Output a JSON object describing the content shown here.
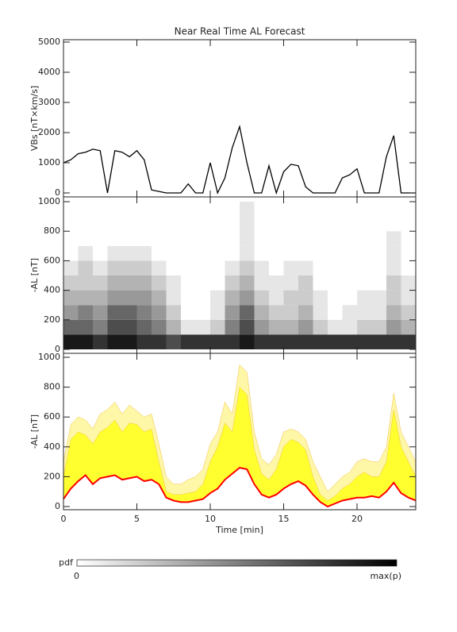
{
  "chart_data": [
    {
      "type": "line",
      "title": "Near Real Time AL Forecast",
      "y_label": "VBs [nT×km/s]",
      "color": "#000000",
      "x": [
        0,
        0.5,
        1,
        1.5,
        2,
        2.5,
        3,
        3.5,
        4,
        4.5,
        5,
        5.5,
        6,
        6.5,
        7,
        7.5,
        8,
        8.5,
        9,
        9.5,
        10,
        10.5,
        11,
        11.5,
        12,
        12.5,
        13,
        13.5,
        14,
        14.5,
        15,
        15.5,
        16,
        16.5,
        17,
        17.5,
        18,
        18.5,
        19,
        19.5,
        20,
        20.5,
        21,
        21.5,
        22,
        22.5,
        23,
        23.5,
        24
      ],
      "values": [
        1000,
        1100,
        1300,
        1350,
        1450,
        1400,
        0,
        1400,
        1350,
        1200,
        1400,
        1100,
        100,
        50,
        0,
        0,
        0,
        300,
        0,
        0,
        1000,
        0,
        500,
        1500,
        2200,
        1000,
        0,
        0,
        900,
        0,
        700,
        950,
        900,
        200,
        0,
        0,
        0,
        0,
        500,
        600,
        800,
        0,
        0,
        0,
        1200,
        1900,
        0,
        0,
        0
      ],
      "xlim": [
        0,
        24
      ],
      "ylim": [
        0,
        5000
      ],
      "yticks": [
        0,
        1000,
        2000,
        3000,
        4000,
        5000
      ]
    },
    {
      "type": "heatmap",
      "y_label": "-AL [nT]",
      "x_bins": [
        0,
        1,
        2,
        3,
        4,
        5,
        6,
        7,
        8,
        9,
        10,
        11,
        12,
        13,
        14,
        15,
        16,
        17,
        18,
        19,
        20,
        21,
        22,
        23,
        24
      ],
      "y_bins": [
        0,
        100,
        200,
        300,
        400,
        500,
        600,
        700,
        800,
        900,
        1000
      ],
      "values": [
        [
          0.9,
          0.9,
          0.8,
          0.9,
          0.9,
          0.8,
          0.8,
          0.7,
          0.8,
          0.8,
          0.8,
          0.8,
          0.9,
          0.8,
          0.8,
          0.8,
          0.8,
          0.8,
          0.8,
          0.8,
          0.8,
          0.8,
          0.8,
          0.8
        ],
        [
          0.6,
          0.6,
          0.5,
          0.7,
          0.7,
          0.6,
          0.5,
          0.3,
          0.1,
          0.1,
          0.2,
          0.5,
          0.7,
          0.4,
          0.3,
          0.3,
          0.4,
          0.2,
          0.1,
          0.1,
          0.2,
          0.2,
          0.4,
          0.3
        ],
        [
          0.4,
          0.5,
          0.4,
          0.6,
          0.6,
          0.5,
          0.4,
          0.2,
          0,
          0,
          0.1,
          0.4,
          0.6,
          0.3,
          0.2,
          0.2,
          0.3,
          0.1,
          0,
          0.1,
          0.1,
          0.1,
          0.3,
          0.2
        ],
        [
          0.3,
          0.3,
          0.3,
          0.4,
          0.4,
          0.4,
          0.3,
          0.1,
          0,
          0,
          0.1,
          0.3,
          0.4,
          0.2,
          0.1,
          0.2,
          0.2,
          0.1,
          0,
          0,
          0.1,
          0.1,
          0.2,
          0.1
        ],
        [
          0.2,
          0.2,
          0.2,
          0.3,
          0.3,
          0.3,
          0.2,
          0.1,
          0,
          0,
          0,
          0.2,
          0.3,
          0.1,
          0.1,
          0.1,
          0.2,
          0,
          0,
          0,
          0,
          0,
          0.2,
          0.1
        ],
        [
          0.1,
          0.2,
          0.1,
          0.2,
          0.2,
          0.2,
          0.1,
          0,
          0,
          0,
          0,
          0.1,
          0.2,
          0.1,
          0,
          0.1,
          0.1,
          0,
          0,
          0,
          0,
          0,
          0.1,
          0
        ],
        [
          0,
          0.1,
          0,
          0.1,
          0.1,
          0.1,
          0,
          0,
          0,
          0,
          0,
          0,
          0.1,
          0,
          0,
          0,
          0,
          0,
          0,
          0,
          0,
          0,
          0.1,
          0
        ],
        [
          0,
          0,
          0,
          0,
          0,
          0,
          0,
          0,
          0,
          0,
          0,
          0,
          0.1,
          0,
          0,
          0,
          0,
          0,
          0,
          0,
          0,
          0,
          0.1,
          0
        ],
        [
          0,
          0,
          0,
          0,
          0,
          0,
          0,
          0,
          0,
          0,
          0,
          0,
          0.1,
          0,
          0,
          0,
          0,
          0,
          0,
          0,
          0,
          0,
          0,
          0
        ],
        [
          0,
          0,
          0,
          0,
          0,
          0,
          0,
          0,
          0,
          0,
          0,
          0,
          0.1,
          0,
          0,
          0,
          0,
          0,
          0,
          0,
          0,
          0,
          0,
          0
        ]
      ],
      "xlim": [
        0,
        24
      ],
      "ylim": [
        0,
        1000
      ],
      "yticks": [
        0,
        200,
        400,
        600,
        800,
        1000
      ],
      "colorbar": {
        "label": "pdf",
        "min_label": "0",
        "max_label": "max(p)"
      }
    },
    {
      "type": "band",
      "y_label": "-AL [nT]",
      "x_label": "Time [min]",
      "x": [
        0,
        0.5,
        1,
        1.5,
        2,
        2.5,
        3,
        3.5,
        4,
        4.5,
        5,
        5.5,
        6,
        6.5,
        7,
        7.5,
        8,
        8.5,
        9,
        9.5,
        10,
        10.5,
        11,
        11.5,
        12,
        12.5,
        13,
        13.5,
        14,
        14.5,
        15,
        15.5,
        16,
        16.5,
        17,
        17.5,
        18,
        18.5,
        19,
        19.5,
        20,
        20.5,
        21,
        21.5,
        22,
        22.5,
        23,
        23.5,
        24
      ],
      "bands": [
        {
          "color": "#fff7a8",
          "upper": [
            300,
            550,
            600,
            580,
            520,
            620,
            650,
            700,
            620,
            680,
            640,
            600,
            620,
            420,
            200,
            150,
            150,
            180,
            200,
            250,
            420,
            500,
            700,
            620,
            950,
            900,
            500,
            320,
            280,
            350,
            500,
            520,
            500,
            450,
            300,
            200,
            100,
            150,
            200,
            230,
            300,
            320,
            300,
            300,
            400,
            760,
            500,
            400,
            300
          ]
        },
        {
          "color": "#ffff30",
          "upper": [
            200,
            450,
            500,
            480,
            420,
            500,
            530,
            580,
            500,
            560,
            550,
            500,
            520,
            300,
            100,
            80,
            80,
            90,
            100,
            150,
            300,
            400,
            560,
            500,
            800,
            750,
            380,
            220,
            180,
            250,
            400,
            450,
            430,
            380,
            200,
            80,
            40,
            70,
            120,
            150,
            200,
            230,
            200,
            200,
            300,
            650,
            400,
            300,
            200
          ]
        }
      ],
      "line": {
        "color": "#ff0000",
        "values": [
          50,
          120,
          170,
          210,
          150,
          190,
          200,
          210,
          180,
          190,
          200,
          170,
          180,
          150,
          60,
          40,
          30,
          30,
          40,
          50,
          90,
          120,
          180,
          220,
          260,
          250,
          150,
          80,
          60,
          80,
          120,
          150,
          170,
          140,
          80,
          30,
          0,
          20,
          40,
          50,
          60,
          60,
          70,
          60,
          100,
          160,
          90,
          60,
          40
        ]
      },
      "xlim": [
        0,
        24
      ],
      "ylim": [
        0,
        1000
      ],
      "yticks": [
        0,
        200,
        400,
        600,
        800,
        1000
      ],
      "xticks": [
        0,
        5,
        10,
        15,
        20
      ]
    }
  ]
}
